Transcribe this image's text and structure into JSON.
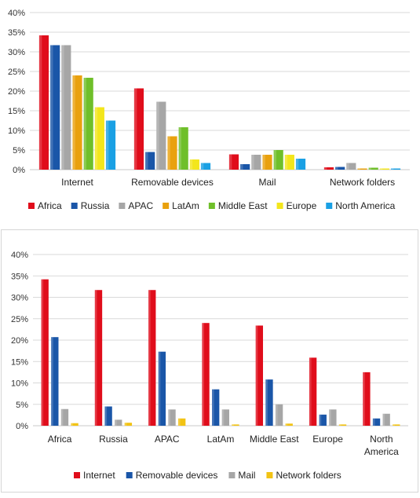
{
  "colors": {
    "Africa": "#e00d1b",
    "Russia": "#1a56a8",
    "APAC": "#a6a6a6",
    "LatAm": "#e9a10e",
    "Middle East": "#6fbf2a",
    "Europe": "#f3e61c",
    "North America": "#1aa0e4",
    "Internet": "#e00d1b",
    "Removable devices": "#1a56a8",
    "Mail": "#a6a6a6",
    "Network folders": "#f2c314"
  },
  "chart_data": [
    {
      "type": "bar",
      "categories": [
        "Internet",
        "Removable devices",
        "Mail",
        "Network folders"
      ],
      "series": [
        {
          "name": "Africa",
          "values": [
            34.2,
            20.7,
            3.9,
            0.6
          ]
        },
        {
          "name": "Russia",
          "values": [
            31.7,
            4.5,
            1.4,
            0.7
          ]
        },
        {
          "name": "APAC",
          "values": [
            31.7,
            17.3,
            3.8,
            1.7
          ]
        },
        {
          "name": "LatAm",
          "values": [
            24.0,
            8.5,
            3.8,
            0.3
          ]
        },
        {
          "name": "Middle East",
          "values": [
            23.4,
            10.8,
            5.0,
            0.5
          ]
        },
        {
          "name": "Europe",
          "values": [
            15.9,
            2.6,
            3.8,
            0.3
          ]
        },
        {
          "name": "North America",
          "values": [
            12.5,
            1.7,
            2.8,
            0.3
          ]
        }
      ],
      "yticks": [
        "0%",
        "5%",
        "10%",
        "15%",
        "20%",
        "25%",
        "30%",
        "35%",
        "40%"
      ],
      "ylim": [
        0,
        40
      ],
      "grid": true,
      "legend": "bottom"
    },
    {
      "type": "bar",
      "categories": [
        "Africa",
        "Russia",
        "APAC",
        "LatAm",
        "Middle East",
        "Europe",
        "North America"
      ],
      "series": [
        {
          "name": "Internet",
          "values": [
            34.2,
            31.7,
            31.7,
            24.0,
            23.4,
            15.9,
            12.5
          ]
        },
        {
          "name": "Removable devices",
          "values": [
            20.7,
            4.5,
            17.3,
            8.5,
            10.8,
            2.6,
            1.7
          ]
        },
        {
          "name": "Mail",
          "values": [
            3.9,
            1.4,
            3.8,
            3.8,
            5.0,
            3.8,
            2.8
          ]
        },
        {
          "name": "Network folders",
          "values": [
            0.6,
            0.7,
            1.7,
            0.3,
            0.5,
            0.3,
            0.3
          ]
        }
      ],
      "yticks": [
        "0%",
        "5%",
        "10%",
        "15%",
        "20%",
        "25%",
        "30%",
        "35%",
        "40%"
      ],
      "ylim": [
        0,
        40
      ],
      "grid": true,
      "legend": "bottom"
    }
  ]
}
